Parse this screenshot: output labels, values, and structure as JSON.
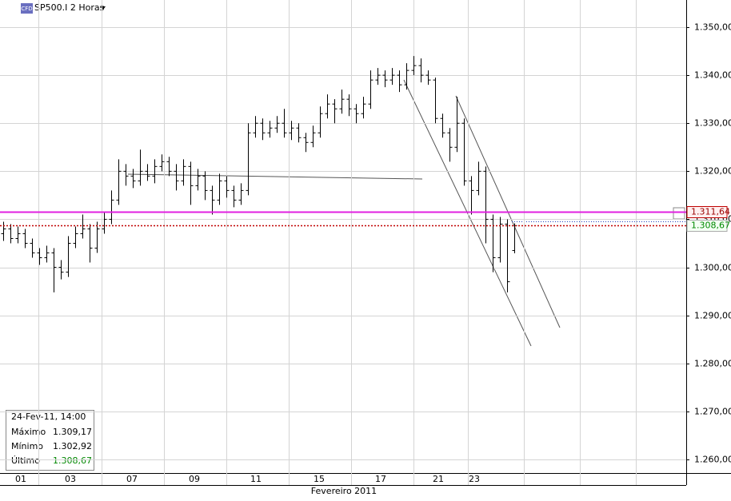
{
  "chart_data": {
    "type": "ohlc",
    "title": "SP500.I 2 Horas",
    "icon_text": "CFD",
    "x_title": "Fevereiro 2011",
    "x_labels": [
      "01",
      "03",
      "07",
      "09",
      "11",
      "15",
      "17",
      "21",
      "23"
    ],
    "ylim": [
      1257.17,
      1355.66
    ],
    "yticks": [
      {
        "value": 1260,
        "label": "1.260,00"
      },
      {
        "value": 1270,
        "label": "1.270,00"
      },
      {
        "value": 1280,
        "label": "1.280,00"
      },
      {
        "value": 1290,
        "label": "1.290,00"
      },
      {
        "value": 1300,
        "label": "1.300,00"
      },
      {
        "value": 1310,
        "label": "1.310,00"
      },
      {
        "value": 1320,
        "label": "1.320,00"
      },
      {
        "value": 1330,
        "label": "1.330,00"
      },
      {
        "value": 1340,
        "label": "1.340,00"
      },
      {
        "value": 1350,
        "label": "1.350,00"
      }
    ],
    "grid": true,
    "color": "#000000",
    "open": [
      1307,
      1308,
      1306,
      1307,
      1305,
      1303,
      1302,
      1303,
      1300,
      1299,
      1305,
      1307,
      1308,
      1304,
      1308,
      1310,
      1314,
      1320,
      1319,
      1318,
      1320,
      1319,
      1321,
      1322,
      1320,
      1318,
      1321,
      1317,
      1319,
      1316,
      1314,
      1318,
      1316,
      1314,
      1316,
      1328,
      1330,
      1328,
      1329,
      1330,
      1328,
      1329,
      1327,
      1326,
      1328,
      1332,
      1334,
      1333,
      1335,
      1333,
      1332,
      1334,
      1339,
      1340,
      1339,
      1340,
      1338,
      1341,
      1342,
      1340,
      1339,
      1331,
      1328,
      1325,
      1330,
      1318,
      1316,
      1320,
      1310,
      1302,
      1309,
      1303.5
    ],
    "high": [
      1309.5,
      1309,
      1308.5,
      1308,
      1306,
      1304,
      1304.5,
      1304,
      1301.5,
      1306.5,
      1308.5,
      1311,
      1309,
      1309.5,
      1311.5,
      1316,
      1322.5,
      1321.5,
      1320.5,
      1324.5,
      1321.5,
      1322.5,
      1323.5,
      1323,
      1321.5,
      1322.5,
      1322,
      1320.5,
      1320,
      1317,
      1319.5,
      1319,
      1317,
      1317.5,
      1330,
      1331.5,
      1331,
      1330.5,
      1331.5,
      1333,
      1330.5,
      1330,
      1328,
      1329.5,
      1333.5,
      1336,
      1335,
      1337,
      1336,
      1334,
      1335.5,
      1341,
      1341.5,
      1341,
      1341.5,
      1341,
      1342.5,
      1344,
      1343.5,
      1341,
      1339.5,
      1332,
      1329,
      1335.5,
      1331,
      1319,
      1322,
      1321,
      1311,
      1310.5,
      1310,
      1309.17
    ],
    "low": [
      1305.5,
      1305,
      1305,
      1304,
      1302,
      1300.5,
      1301,
      1294.8,
      1297.5,
      1298,
      1304,
      1306,
      1301,
      1303,
      1307,
      1309,
      1313,
      1317,
      1316.5,
      1317,
      1318,
      1317.5,
      1320,
      1319,
      1316,
      1317,
      1313,
      1316,
      1314,
      1311,
      1313,
      1314.5,
      1312.5,
      1313,
      1315,
      1327,
      1326.5,
      1327,
      1328,
      1327,
      1326.5,
      1326,
      1324,
      1325,
      1327,
      1331,
      1330,
      1332,
      1331.5,
      1330,
      1331,
      1333,
      1338,
      1337.5,
      1338,
      1336.5,
      1337,
      1340,
      1338.5,
      1338,
      1330,
      1327,
      1322,
      1324,
      1317,
      1311,
      1315,
      1305,
      1299,
      1301,
      1294.8,
      1302.92
    ],
    "close": [
      1308,
      1306,
      1307,
      1305,
      1303,
      1302,
      1303,
      1300,
      1299,
      1305,
      1307,
      1308,
      1304,
      1308,
      1310,
      1314,
      1320,
      1319,
      1318,
      1320,
      1319,
      1321,
      1322,
      1320,
      1318,
      1321,
      1317,
      1319,
      1316,
      1314,
      1318,
      1316,
      1314,
      1316,
      1328,
      1330,
      1328,
      1329,
      1330,
      1328,
      1329,
      1327,
      1326,
      1328,
      1332,
      1334,
      1333,
      1335,
      1333,
      1332,
      1334,
      1339,
      1340,
      1339,
      1340,
      1338,
      1341,
      1342,
      1340,
      1339,
      1331,
      1328,
      1325,
      1330,
      1318,
      1316,
      1320,
      1310,
      1302,
      1309,
      1297,
      1308.67
    ],
    "price_lines": [
      {
        "value": 1311.64,
        "label": "1.311,64",
        "color": "#e020e0"
      },
      {
        "value": 1308.67,
        "label": "1.308,67",
        "color": "#c00000"
      }
    ],
    "info_box": {
      "title": "24-Fev-11, 14:00",
      "rows": [
        [
          "Máximo",
          "1.309,17"
        ],
        [
          "Mínimo",
          "1.302,92"
        ],
        [
          "Último",
          "1.308,67"
        ]
      ]
    }
  }
}
